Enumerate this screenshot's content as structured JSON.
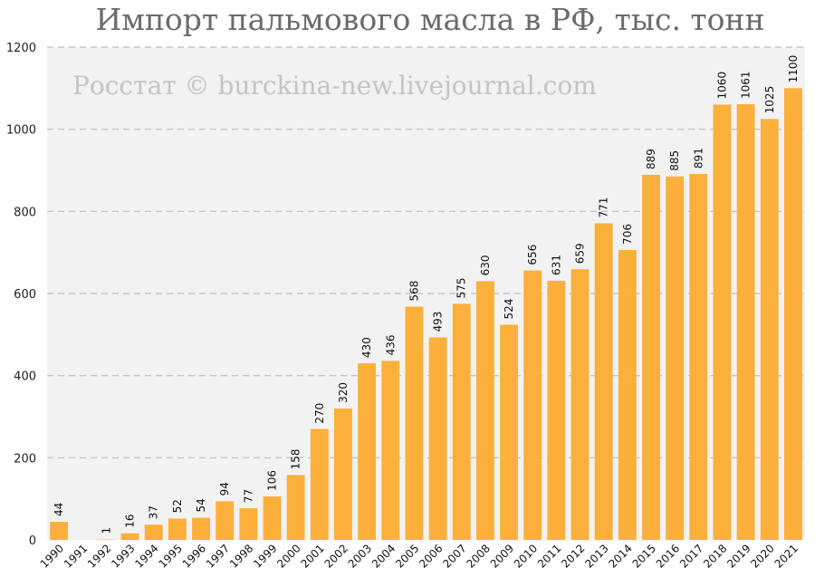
{
  "chart_data": {
    "type": "bar",
    "title": "Импорт пальмового масла в РФ, тыс. тонн",
    "watermark": "Росстат © burckina-new.livejournal.com",
    "categories": [
      "1990",
      "1991",
      "1992",
      "1993",
      "1994",
      "1995",
      "1996",
      "1997",
      "1998",
      "1999",
      "2000",
      "2001",
      "2002",
      "2003",
      "2004",
      "2005",
      "2006",
      "2007",
      "2008",
      "2009",
      "2010",
      "2011",
      "2012",
      "2013",
      "2014",
      "2015",
      "2016",
      "2017",
      "2018",
      "2019",
      "2020",
      "2021"
    ],
    "values": [
      44,
      null,
      1,
      16,
      37,
      52,
      54,
      94,
      77,
      106,
      158,
      270,
      320,
      430,
      436,
      568,
      493,
      575,
      630,
      524,
      656,
      631,
      659,
      771,
      706,
      889,
      885,
      891,
      1060,
      1061,
      1025,
      1100
    ],
    "y_ticks": [
      "0",
      "200",
      "400",
      "600",
      "800",
      "1000",
      "1200"
    ],
    "ylim": [
      0,
      1200
    ],
    "grid": true,
    "legend": "none",
    "colors": {
      "bar": "#fbb03b",
      "plot_bg": "#f2f2f2",
      "grid": "#bdbdbd",
      "title": "#6b6b6b",
      "watermark": "#c4c4c4"
    }
  }
}
